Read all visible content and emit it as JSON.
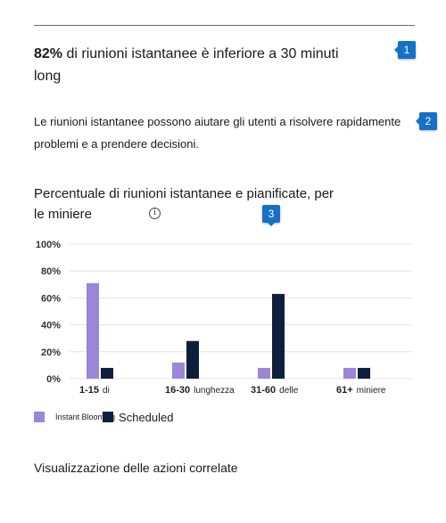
{
  "headline": {
    "percent": "82%",
    "text": " di riunioni istantanee è inferiore a 30 minuti long"
  },
  "description": "Le riunioni istantanee possono aiutare gli utenti a risolvere rapidamente problemi e a prendere decisioni.",
  "markers": [
    "1",
    "2",
    "3"
  ],
  "info_icon": "i",
  "related_actions": "Visualizzazione delle azioni correlate",
  "colors": {
    "instant": "#9b86d8",
    "scheduled": "#0d1f3d",
    "marker": "#1670c6"
  },
  "chart_data": {
    "type": "bar",
    "title": "Percentuale di riunioni istantanee e pianificate, per le miniere",
    "categories": [
      "1-15 di",
      "16-30 lunghezza",
      "31-60 delle",
      "61+ miniere"
    ],
    "series": [
      {
        "name": "Instant Blooming",
        "values": [
          71,
          12,
          8,
          8
        ]
      },
      {
        "name": "Scheduled",
        "values": [
          8,
          28,
          63,
          8
        ]
      }
    ],
    "yticks": [
      "0%",
      "20%",
      "40%",
      "60%",
      "80%",
      "100%"
    ],
    "ylim": [
      0,
      100
    ],
    "grid": true,
    "legend": "bottom-left"
  }
}
